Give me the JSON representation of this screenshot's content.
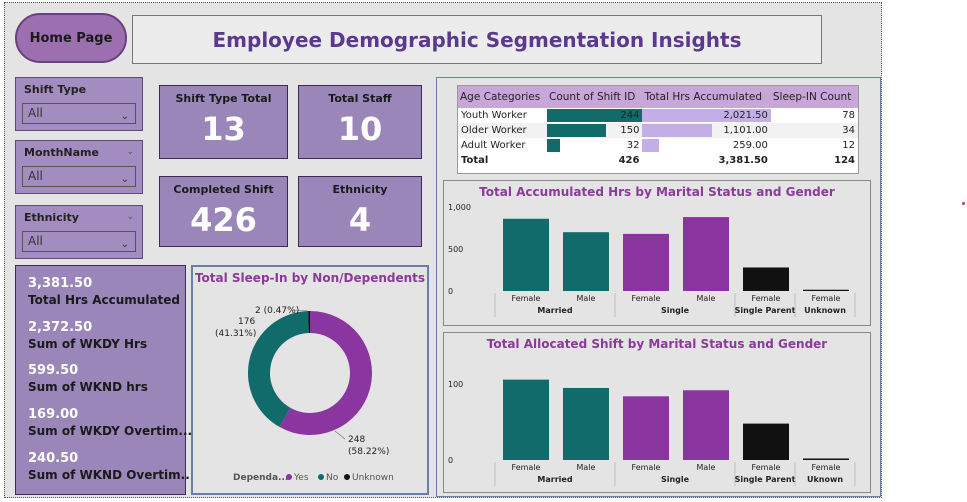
{
  "header": {
    "home_label": "Home Page",
    "title": "Employee Demographic Segmentation Insights"
  },
  "slicers": [
    {
      "label": "Shift Type",
      "value": "All"
    },
    {
      "label": "MonthName",
      "value": "All"
    },
    {
      "label": "Ethnicity",
      "value": "All"
    }
  ],
  "cards": [
    {
      "title": "Shift Type Total",
      "value": "13"
    },
    {
      "title": "Total Staff",
      "value": "10"
    },
    {
      "title": "Completed Shift",
      "value": "426"
    },
    {
      "title": "Ethnicity",
      "value": "4"
    }
  ],
  "multi_card": [
    {
      "value": "3,381.50",
      "label": "Total Hrs Accumulated"
    },
    {
      "value": "2,372.50",
      "label": "Sum of WKDY Hrs"
    },
    {
      "value": "599.50",
      "label": "Sum of WKND hrs"
    },
    {
      "value": "169.00",
      "label": "Sum of WKDY Overtim..."
    },
    {
      "value": "240.50",
      "label": "Sum of WKND Overtim..."
    }
  ],
  "table": {
    "headers": [
      "Age Categories",
      "Count of Shift ID",
      "Total Hrs Accumulated",
      "Sleep-IN Count"
    ],
    "rows": [
      {
        "cat": "Youth Worker",
        "count": "244",
        "hrs": "2,021.50",
        "sleep": "78",
        "count_frac": 1.0,
        "hrs_frac": 1.0
      },
      {
        "cat": "Older Worker",
        "count": "150",
        "hrs": "1,101.00",
        "sleep": "34",
        "count_frac": 0.615,
        "hrs_frac": 0.545
      },
      {
        "cat": "Adult Worker",
        "count": "32",
        "hrs": "259.00",
        "sleep": "12",
        "count_frac": 0.131,
        "hrs_frac": 0.128
      }
    ],
    "total": {
      "cat": "Total",
      "count": "426",
      "hrs": "3,381.50",
      "sleep": "124"
    }
  },
  "chart_data": [
    {
      "type": "pie",
      "title": "Total Sleep-In by Non/Dependents",
      "legend_title": "Dependa...",
      "labels": [
        "Yes",
        "No",
        "Unknown"
      ],
      "values": [
        248,
        176,
        2
      ],
      "data_labels": [
        "248\n(58.22%)",
        "176\n(41.31%)",
        "2 (0.47%)"
      ],
      "colors": [
        "#8b35a0",
        "#116b6b",
        "#111111"
      ]
    },
    {
      "type": "bar",
      "title": "Total Accumulated Hrs by Marital Status and Gender",
      "categories": [
        "Female",
        "Male",
        "Female",
        "Male",
        "Female",
        "Female"
      ],
      "groups": [
        "Married",
        "Single",
        "Single Parent",
        "Unknown"
      ],
      "values": [
        860,
        700,
        680,
        880,
        280,
        15
      ],
      "colors": [
        "#116b6b",
        "#116b6b",
        "#8b35a0",
        "#8b35a0",
        "#111111",
        "#111111"
      ],
      "yticks": [
        "1,000",
        "500",
        "0"
      ],
      "ylim": [
        0,
        1000
      ]
    },
    {
      "type": "bar",
      "title": "Total Allocated Shift by Marital Status and Gender",
      "categories": [
        "Female",
        "Male",
        "Female",
        "Male",
        "Female",
        "Female"
      ],
      "groups": [
        "Married",
        "Single",
        "Single Parent",
        "Uknown"
      ],
      "values": [
        106,
        95,
        84,
        92,
        48,
        2
      ],
      "colors": [
        "#116b6b",
        "#116b6b",
        "#8b35a0",
        "#8b35a0",
        "#111111",
        "#111111"
      ],
      "yticks": [
        "100",
        "0"
      ],
      "ylim": [
        0,
        120
      ]
    }
  ]
}
